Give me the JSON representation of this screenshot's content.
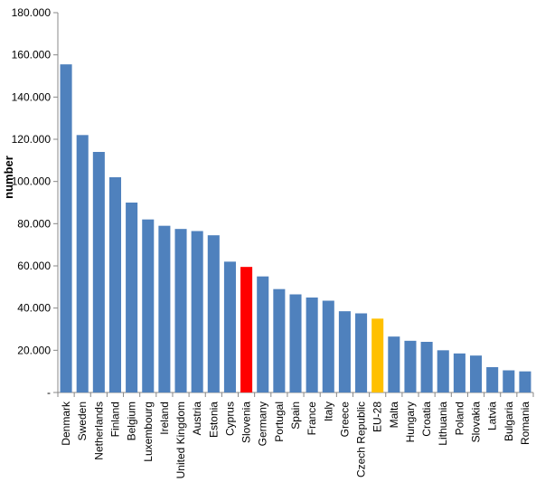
{
  "chart_data": {
    "type": "bar",
    "ylabel": "number",
    "ylim": [
      0,
      180000
    ],
    "ytick_values": [
      0,
      20000,
      40000,
      60000,
      80000,
      100000,
      120000,
      140000,
      160000,
      180000
    ],
    "ytick_labels": [
      "-",
      "20.000",
      "40.000",
      "60.000",
      "80.000",
      "100.000",
      "120.000",
      "140.000",
      "160.000",
      "180.000"
    ],
    "grid": false,
    "categories": [
      "Denmark",
      "Sweden",
      "Netherlands",
      "Finland",
      "Belgium",
      "Luxembourg",
      "Ireland",
      "United Kingdom",
      "Austria",
      "Estonia",
      "Cyprus",
      "Slovenia",
      "Germany",
      "Portugal",
      "Spain",
      "France",
      "Italy",
      "Greece",
      "Czech Republic",
      "EU-28",
      "Malta",
      "Hungary",
      "Croatia",
      "Lithuania",
      "Poland",
      "Slovakia",
      "Latvia",
      "Bulgaria",
      "Romania"
    ],
    "values": [
      155500,
      122000,
      114000,
      102000,
      90000,
      82000,
      79000,
      77500,
      76500,
      74500,
      62000,
      59500,
      55000,
      49000,
      46500,
      45000,
      43500,
      38500,
      37500,
      35000,
      26500,
      24500,
      24000,
      20000,
      18500,
      17500,
      12000,
      10500,
      10000
    ],
    "colors": {
      "default": "#4F81BD",
      "Slovenia": "#FF0000",
      "EU-28": "#FFC000"
    }
  }
}
